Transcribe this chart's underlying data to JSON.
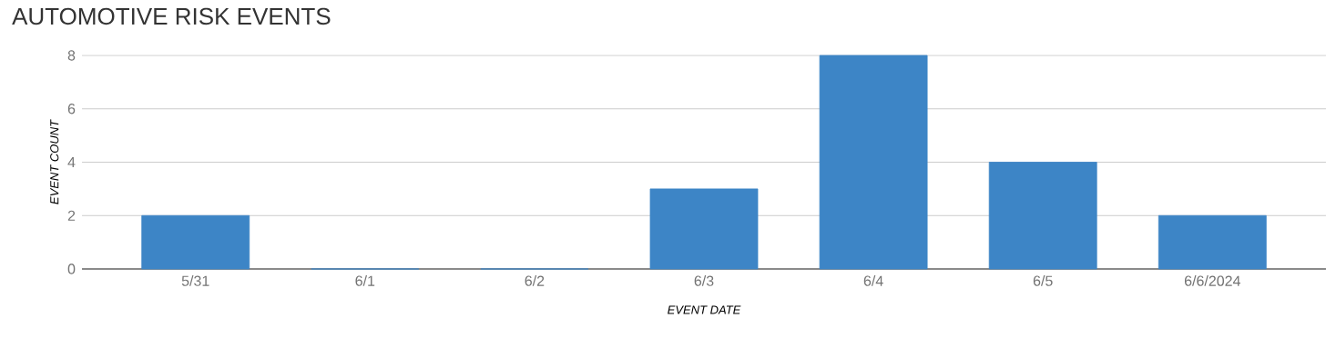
{
  "chart_data": {
    "type": "bar",
    "title": "AUTOMOTIVE RISK EVENTS",
    "xlabel": "EVENT DATE",
    "ylabel": "EVENT COUNT",
    "categories": [
      "5/31",
      "6/1",
      "6/2",
      "6/3",
      "6/4",
      "6/5",
      "6/6/2024"
    ],
    "values": [
      2,
      0,
      0,
      3,
      8,
      4,
      2
    ],
    "color": "#3d85c6",
    "ylim": [
      0,
      8
    ],
    "yticks": [
      0,
      2,
      4,
      6,
      8
    ],
    "grid": "y"
  }
}
